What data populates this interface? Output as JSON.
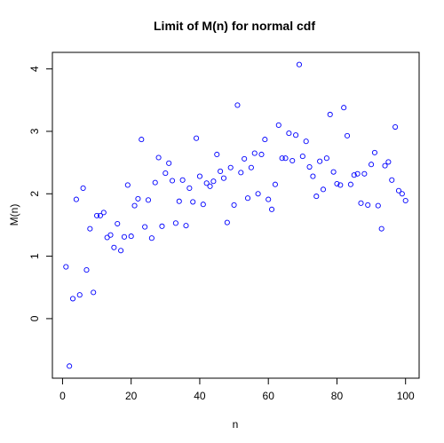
{
  "chart_data": {
    "type": "scatter",
    "title": "Limit of M(n) for normal cdf",
    "xlabel": "n",
    "ylabel": "M(n)",
    "xlim": [
      -2.96,
      103.96
    ],
    "ylim": [
      -0.954,
      4.265
    ],
    "x_ticks": [
      0,
      20,
      40,
      60,
      80,
      100
    ],
    "y_ticks": [
      0,
      1,
      2,
      3,
      4
    ],
    "grid": false,
    "marker": "open-circle",
    "point_color": "#0000ff",
    "series": [
      {
        "x": [
          1,
          2,
          3,
          4,
          5,
          6,
          7,
          8,
          9,
          10,
          11,
          12,
          13,
          14,
          15,
          16,
          17,
          18,
          19,
          20,
          21,
          22,
          23,
          24,
          25,
          26,
          27,
          28,
          29,
          30,
          31,
          32,
          33,
          34,
          35,
          36,
          37,
          38,
          39,
          40,
          41,
          42,
          43,
          44,
          45,
          46,
          47,
          48,
          49,
          50,
          51,
          52,
          53,
          54,
          55,
          56,
          57,
          58,
          59,
          60,
          61,
          62,
          63,
          64,
          65,
          66,
          67,
          68,
          69,
          70,
          71,
          72,
          73,
          74,
          75,
          76,
          77,
          78,
          79,
          80,
          81,
          82,
          83,
          84,
          85,
          86,
          87,
          88,
          89,
          90,
          91,
          92,
          93,
          94,
          95,
          96,
          97,
          98,
          99,
          100
        ],
        "y": [
          0.83,
          -0.76,
          0.32,
          1.91,
          0.38,
          2.09,
          0.78,
          1.44,
          0.42,
          1.65,
          1.65,
          1.7,
          1.3,
          1.34,
          1.14,
          1.52,
          1.09,
          1.31,
          2.14,
          1.32,
          1.81,
          1.92,
          2.87,
          1.47,
          1.9,
          1.29,
          2.18,
          2.58,
          1.48,
          2.33,
          2.49,
          2.21,
          1.53,
          1.88,
          2.22,
          1.49,
          2.09,
          1.87,
          2.89,
          2.28,
          1.83,
          2.17,
          2.12,
          2.2,
          2.63,
          2.36,
          2.25,
          1.54,
          2.42,
          1.82,
          3.42,
          2.34,
          2.56,
          1.93,
          2.42,
          2.65,
          2.0,
          2.63,
          2.87,
          1.91,
          1.75,
          2.15,
          3.1,
          2.57,
          2.57,
          2.97,
          2.53,
          2.94,
          4.07,
          2.6,
          2.84,
          2.43,
          2.28,
          1.96,
          2.52,
          2.07,
          2.57,
          3.27,
          2.35,
          2.16,
          2.14,
          3.38,
          2.93,
          2.15,
          2.3,
          2.32,
          1.85,
          2.32,
          1.82,
          2.47,
          2.66,
          1.81,
          1.44,
          2.45,
          2.51,
          2.22,
          3.07,
          2.05,
          2.0,
          1.89
        ]
      }
    ]
  }
}
